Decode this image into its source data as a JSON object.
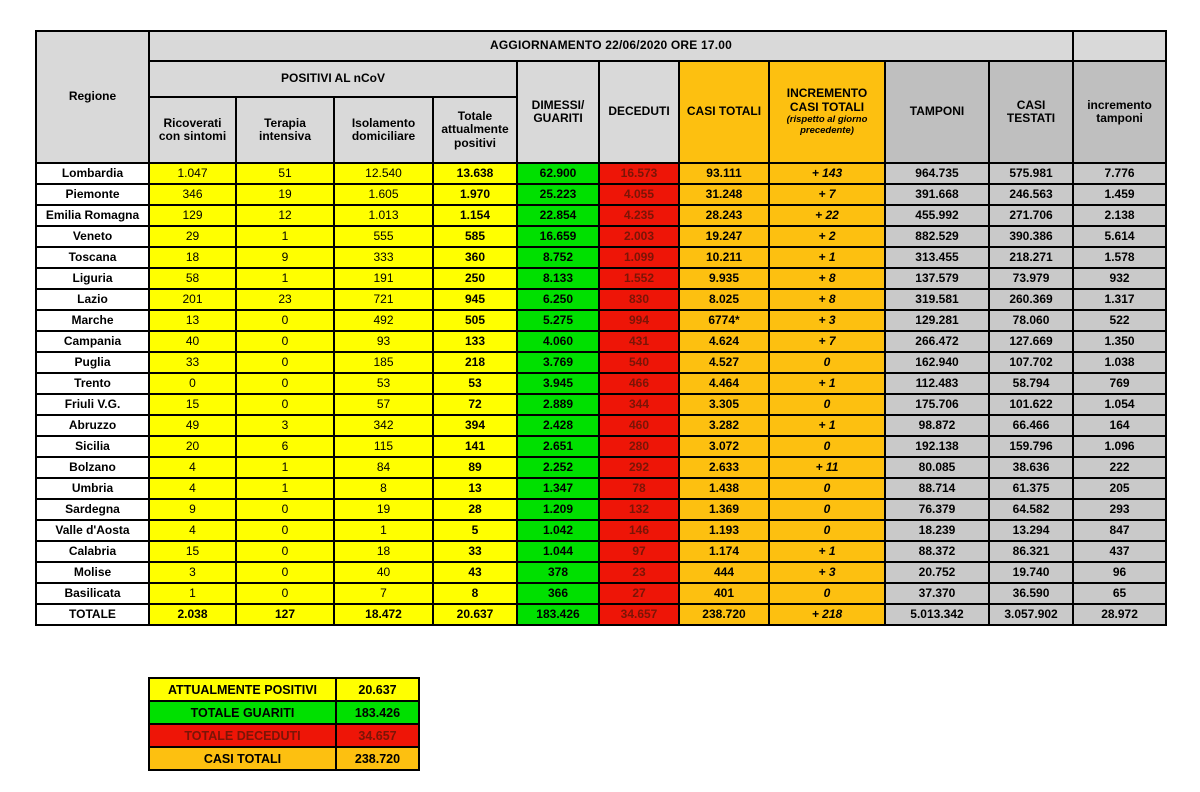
{
  "colors": {
    "yellow": "#ffff00",
    "green": "#00e000",
    "red": "#ee1507",
    "red_text": "#7a1507",
    "orange": "#fdc010",
    "header_gray": "#d9d9d9",
    "column_gray_header": "#bfbfbf",
    "column_gray_cell": "#c9c9c9"
  },
  "header": {
    "title": "AGGIORNAMENTO 22/06/2020 ORE 17.00",
    "regione": "Regione",
    "positivi_group": "POSITIVI AL nCoV",
    "ricoverati": "Ricoverati con sintomi",
    "terapia": "Terapia intensiva",
    "isolamento": "Isolamento domiciliare",
    "totale_pos": "Totale attualmente positivi",
    "dimessi": "DIMESSI/ GUARITI",
    "deceduti": "DECEDUTI",
    "casi_totali": "CASI TOTALI",
    "incremento": "INCREMENTO CASI TOTALI",
    "incremento_note": "(rispetto al giorno precedente)",
    "tamponi": "TAMPONI",
    "casi_testati": "CASI TESTATI",
    "incremento_tamponi": "incremento tamponi"
  },
  "chart_data": {
    "type": "table",
    "title": "AGGIORNAMENTO 22/06/2020 ORE 17.00",
    "columns": [
      "Regione",
      "Ricoverati con sintomi",
      "Terapia intensiva",
      "Isolamento domiciliare",
      "Totale attualmente positivi",
      "DIMESSI/GUARITI",
      "DECEDUTI",
      "CASI TOTALI",
      "INCREMENTO CASI TOTALI (rispetto al giorno precedente)",
      "TAMPONI",
      "CASI TESTATI",
      "incremento tamponi"
    ],
    "rows": [
      [
        "Lombardia",
        "1.047",
        "51",
        "12.540",
        "13.638",
        "62.900",
        "16.573",
        "93.111",
        "+ 143",
        "964.735",
        "575.981",
        "7.776"
      ],
      [
        "Piemonte",
        "346",
        "19",
        "1.605",
        "1.970",
        "25.223",
        "4.055",
        "31.248",
        "+ 7",
        "391.668",
        "246.563",
        "1.459"
      ],
      [
        "Emilia Romagna",
        "129",
        "12",
        "1.013",
        "1.154",
        "22.854",
        "4.235",
        "28.243",
        "+ 22",
        "455.992",
        "271.706",
        "2.138"
      ],
      [
        "Veneto",
        "29",
        "1",
        "555",
        "585",
        "16.659",
        "2.003",
        "19.247",
        "+ 2",
        "882.529",
        "390.386",
        "5.614"
      ],
      [
        "Toscana",
        "18",
        "9",
        "333",
        "360",
        "8.752",
        "1.099",
        "10.211",
        "+ 1",
        "313.455",
        "218.271",
        "1.578"
      ],
      [
        "Liguria",
        "58",
        "1",
        "191",
        "250",
        "8.133",
        "1.552",
        "9.935",
        "+ 8",
        "137.579",
        "73.979",
        "932"
      ],
      [
        "Lazio",
        "201",
        "23",
        "721",
        "945",
        "6.250",
        "830",
        "8.025",
        "+ 8",
        "319.581",
        "260.369",
        "1.317"
      ],
      [
        "Marche",
        "13",
        "0",
        "492",
        "505",
        "5.275",
        "994",
        "6774*",
        "+ 3",
        "129.281",
        "78.060",
        "522"
      ],
      [
        "Campania",
        "40",
        "0",
        "93",
        "133",
        "4.060",
        "431",
        "4.624",
        "+ 7",
        "266.472",
        "127.669",
        "1.350"
      ],
      [
        "Puglia",
        "33",
        "0",
        "185",
        "218",
        "3.769",
        "540",
        "4.527",
        "0",
        "162.940",
        "107.702",
        "1.038"
      ],
      [
        "Trento",
        "0",
        "0",
        "53",
        "53",
        "3.945",
        "466",
        "4.464",
        "+ 1",
        "112.483",
        "58.794",
        "769"
      ],
      [
        "Friuli V.G.",
        "15",
        "0",
        "57",
        "72",
        "2.889",
        "344",
        "3.305",
        "0",
        "175.706",
        "101.622",
        "1.054"
      ],
      [
        "Abruzzo",
        "49",
        "3",
        "342",
        "394",
        "2.428",
        "460",
        "3.282",
        "+ 1",
        "98.872",
        "66.466",
        "164"
      ],
      [
        "Sicilia",
        "20",
        "6",
        "115",
        "141",
        "2.651",
        "280",
        "3.072",
        "0",
        "192.138",
        "159.796",
        "1.096"
      ],
      [
        "Bolzano",
        "4",
        "1",
        "84",
        "89",
        "2.252",
        "292",
        "2.633",
        "+ 11",
        "80.085",
        "38.636",
        "222"
      ],
      [
        "Umbria",
        "4",
        "1",
        "8",
        "13",
        "1.347",
        "78",
        "1.438",
        "0",
        "88.714",
        "61.375",
        "205"
      ],
      [
        "Sardegna",
        "9",
        "0",
        "19",
        "28",
        "1.209",
        "132",
        "1.369",
        "0",
        "76.379",
        "64.582",
        "293"
      ],
      [
        "Valle d'Aosta",
        "4",
        "0",
        "1",
        "5",
        "1.042",
        "146",
        "1.193",
        "0",
        "18.239",
        "13.294",
        "847"
      ],
      [
        "Calabria",
        "15",
        "0",
        "18",
        "33",
        "1.044",
        "97",
        "1.174",
        "+ 1",
        "88.372",
        "86.321",
        "437"
      ],
      [
        "Molise",
        "3",
        "0",
        "40",
        "43",
        "378",
        "23",
        "444",
        "+ 3",
        "20.752",
        "19.740",
        "96"
      ],
      [
        "Basilicata",
        "1",
        "0",
        "7",
        "8",
        "366",
        "27",
        "401",
        "0",
        "37.370",
        "36.590",
        "65"
      ]
    ],
    "totale": [
      "TOTALE",
      "2.038",
      "127",
      "18.472",
      "20.637",
      "183.426",
      "34.657",
      "238.720",
      "+ 218",
      "5.013.342",
      "3.057.902",
      "28.972"
    ]
  },
  "legend": {
    "items": [
      {
        "label": "ATTUALMENTE POSITIVI",
        "value": "20.637",
        "color": "#ffff00"
      },
      {
        "label": "TOTALE GUARITI",
        "value": "183.426",
        "color": "#00e000"
      },
      {
        "label": "TOTALE DECEDUTI",
        "value": "34.657",
        "color": "#ee1507"
      },
      {
        "label": "CASI TOTALI",
        "value": "238.720",
        "color": "#fdc010"
      }
    ]
  }
}
